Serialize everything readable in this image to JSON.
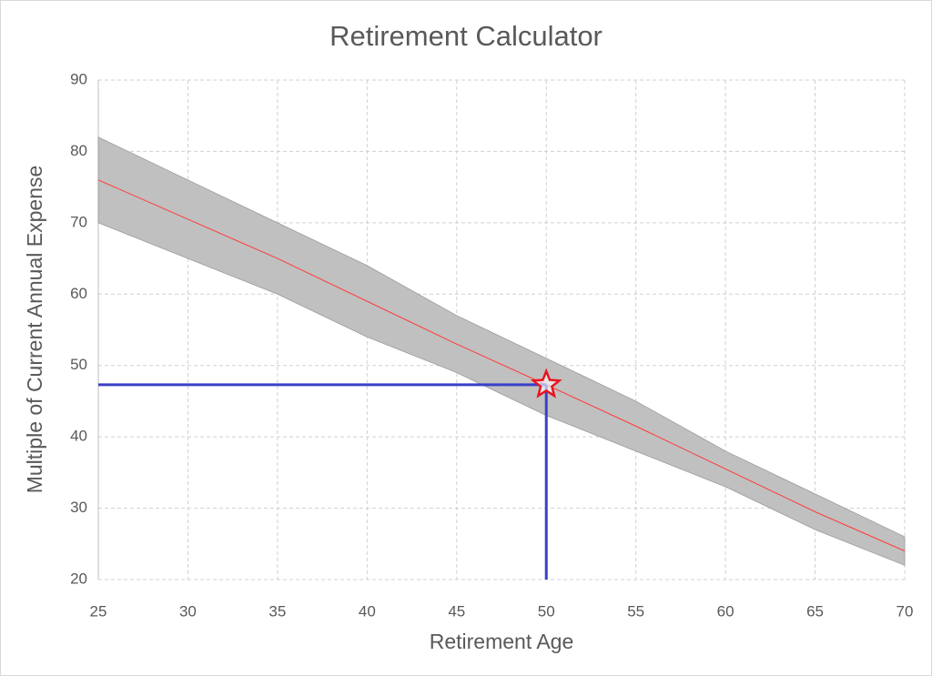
{
  "chart_data": {
    "type": "band-line",
    "title": "Retirement Calculator",
    "x_label": "Retirement Age",
    "y_label": "Multiple of Current Annual Expense",
    "x": [
      25,
      30,
      35,
      40,
      45,
      50,
      55,
      60,
      65,
      70
    ],
    "band": {
      "upper": [
        82,
        76,
        70,
        64,
        57,
        51,
        45,
        38,
        32,
        26
      ],
      "lower": [
        70,
        65,
        60,
        54,
        49,
        43,
        38,
        33,
        27,
        22
      ],
      "color": "#c0c0c0"
    },
    "line": {
      "values": [
        76,
        70.5,
        65,
        59,
        53,
        47.3,
        41.5,
        35.5,
        29.5,
        24
      ],
      "color": "#ff3b3b"
    },
    "marker": {
      "x": 50,
      "y": 47.3,
      "color": "#e8141e",
      "guide_color": "#3a40c8"
    },
    "xlim": [
      25,
      70
    ],
    "xticks": [
      25,
      30,
      35,
      40,
      45,
      50,
      55,
      60,
      65,
      70
    ],
    "ylim": [
      20,
      90
    ],
    "yticks": [
      20,
      30,
      40,
      50,
      60,
      70,
      80,
      90
    ],
    "grid": true
  }
}
